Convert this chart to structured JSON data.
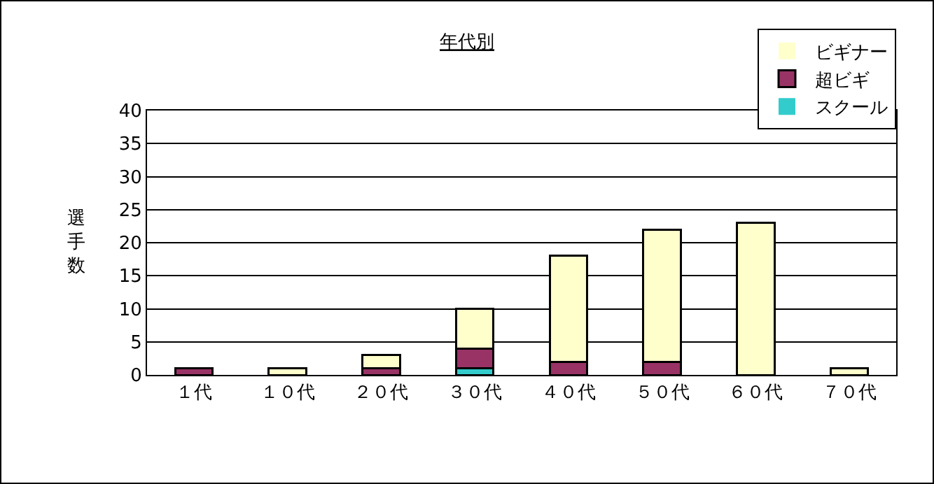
{
  "chart_data": {
    "type": "bar",
    "title": "年代別",
    "ylabel": "選手数",
    "categories": [
      "１代",
      "１０代",
      "２０代",
      "３０代",
      "４０代",
      "５０代",
      "６０代",
      "７０代"
    ],
    "stacked": true,
    "series": [
      {
        "name": "スクール",
        "color": "#33cccc",
        "values": [
          0,
          0,
          0,
          1,
          0,
          0,
          0,
          0
        ]
      },
      {
        "name": "超ビギ",
        "color": "#993366",
        "values": [
          1,
          0,
          1,
          3,
          2,
          2,
          0,
          0
        ]
      },
      {
        "name": "ビギナー",
        "color": "#ffffcc",
        "values": [
          0,
          1,
          2,
          6,
          16,
          20,
          23,
          1
        ]
      }
    ],
    "ylim": [
      0,
      40
    ],
    "yticks": [
      0,
      5,
      10,
      15,
      20,
      25,
      30,
      35,
      40
    ],
    "grid": "y",
    "legend": "top right"
  }
}
